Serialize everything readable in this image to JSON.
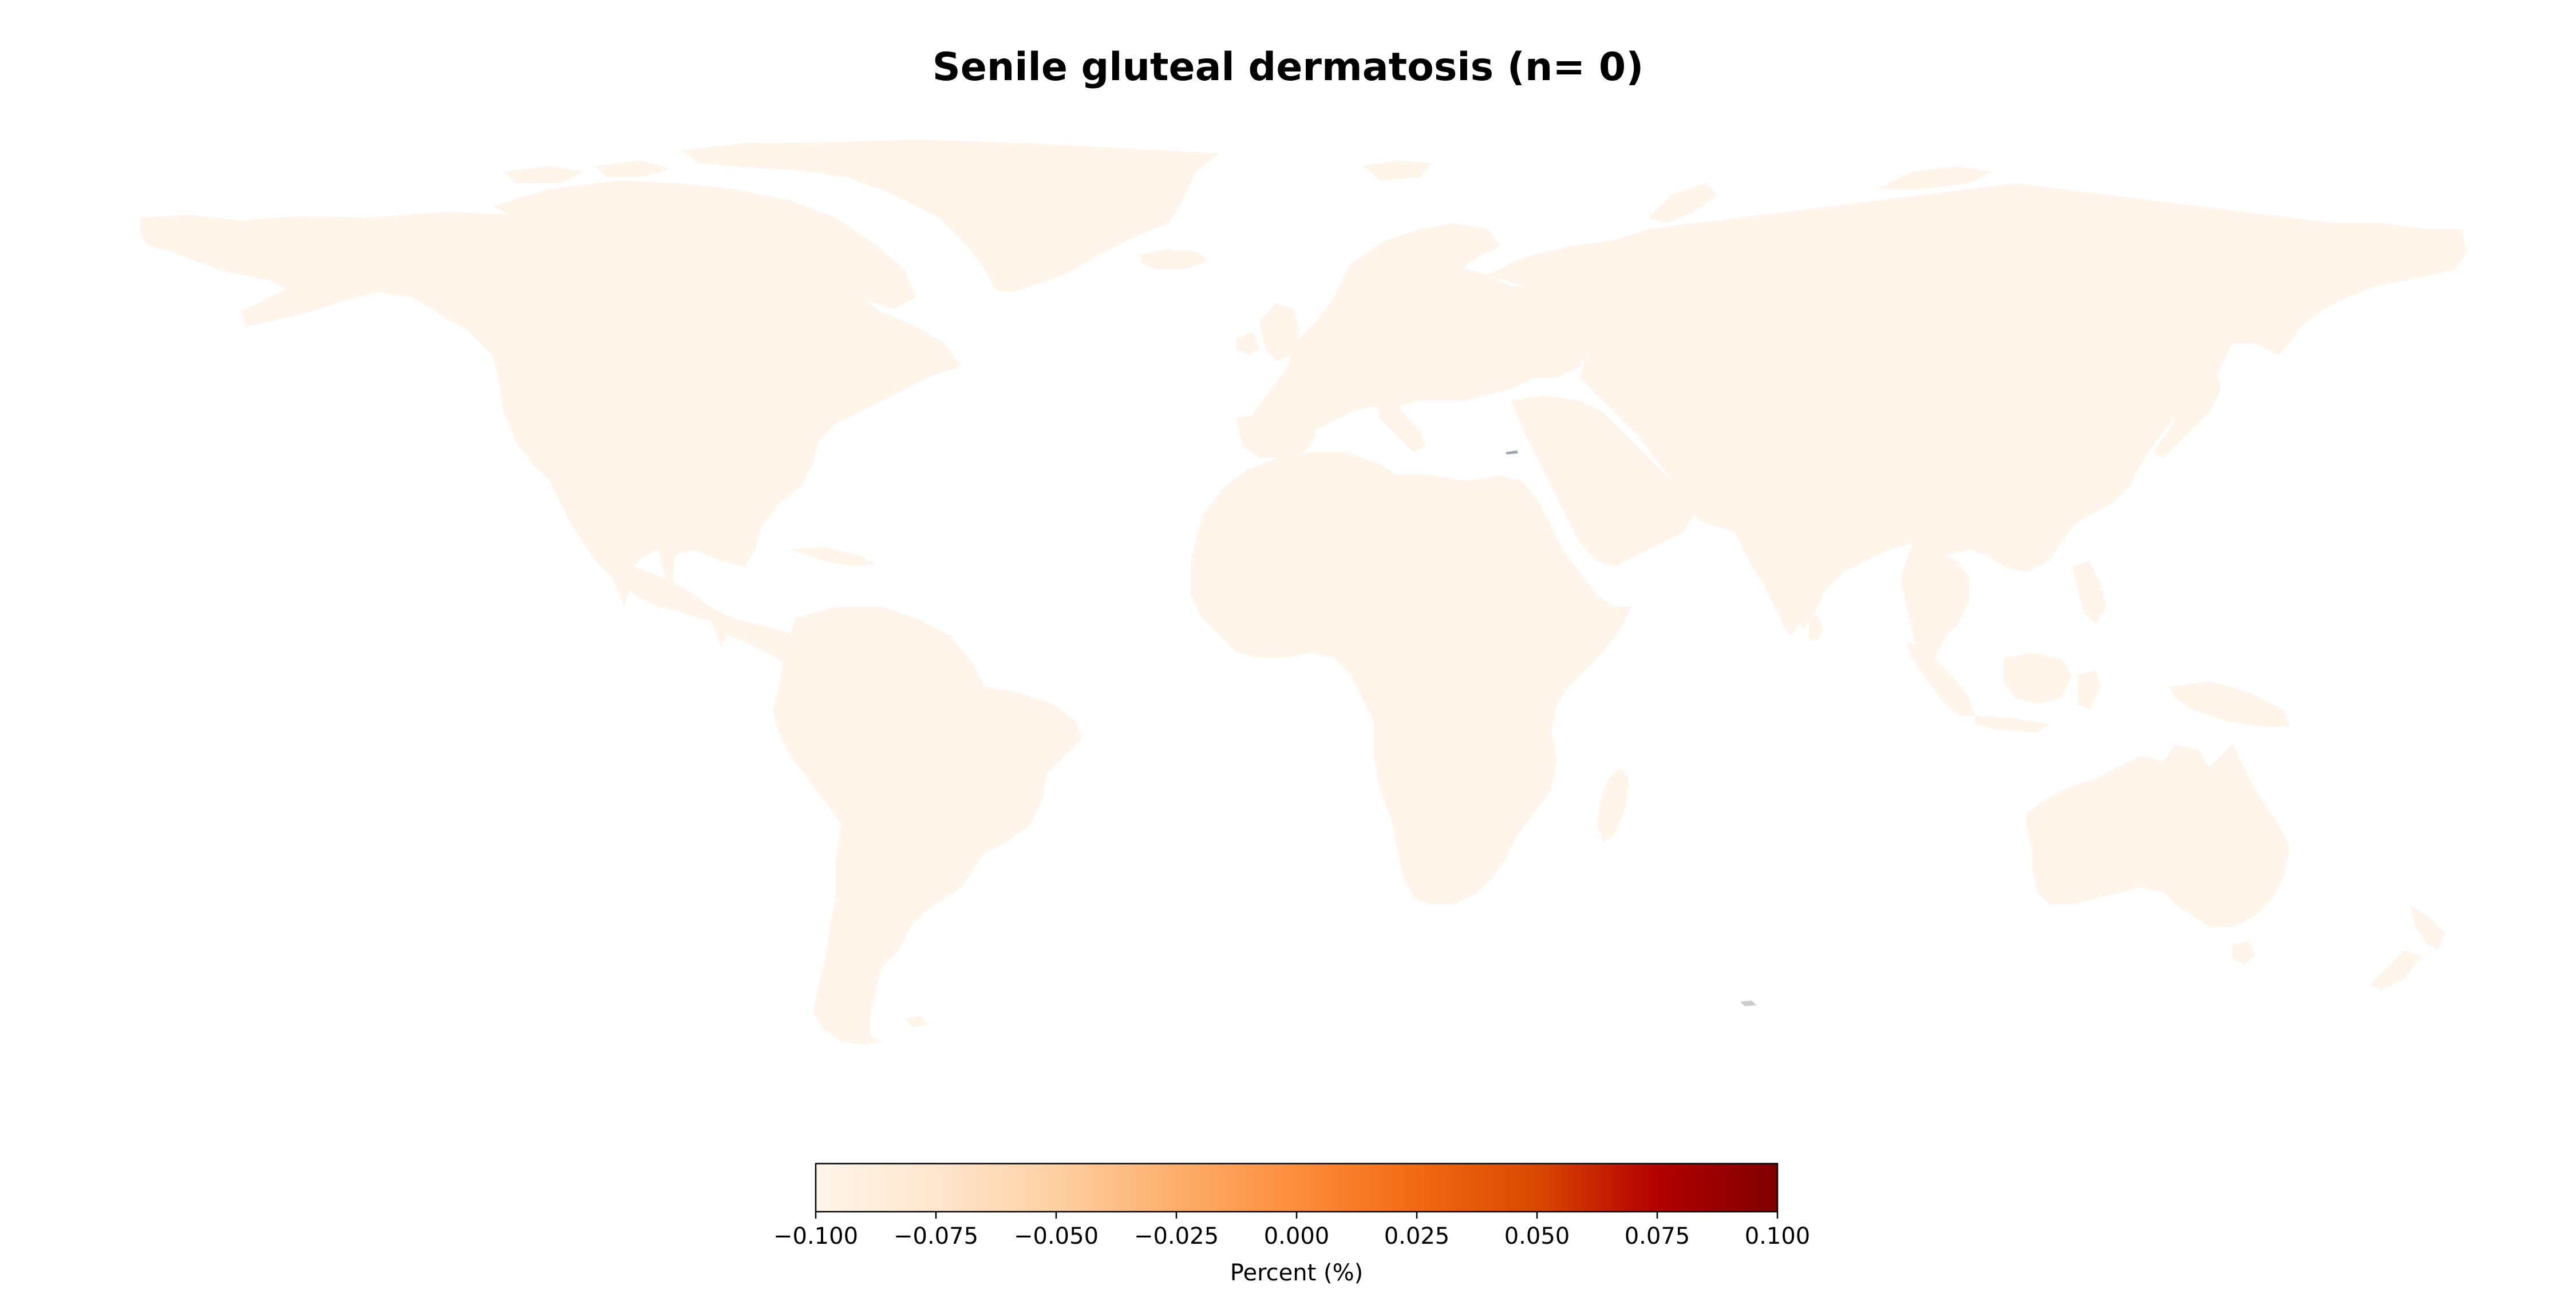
{
  "title": "Senile gluteal dermatosis (n= 0)",
  "colors": {
    "land": "#fff5eb",
    "background": "#ffffff",
    "no_data": "#cccccc",
    "colormap": [
      "#fff5eb",
      "#fee6ce",
      "#fdd0a2",
      "#fdae6b",
      "#fd8d3c",
      "#f16913",
      "#d94801",
      "#b30000",
      "#7f0000"
    ]
  },
  "chart_data": {
    "type": "choropleth-map",
    "title": "Senile gluteal dermatosis (n= 0)",
    "value_label": "Percent (%)",
    "colorbar": {
      "range": [
        -0.1,
        0.1
      ],
      "ticks": [
        "−0.100",
        "−0.075",
        "−0.050",
        "−0.025",
        "0.000",
        "0.025",
        "0.050",
        "0.075",
        "0.100"
      ],
      "tick_values": [
        -0.1,
        -0.075,
        -0.05,
        -0.025,
        0.0,
        0.025,
        0.05,
        0.075,
        0.1
      ],
      "colormap": "OrRd"
    },
    "regions_value": 0
  }
}
